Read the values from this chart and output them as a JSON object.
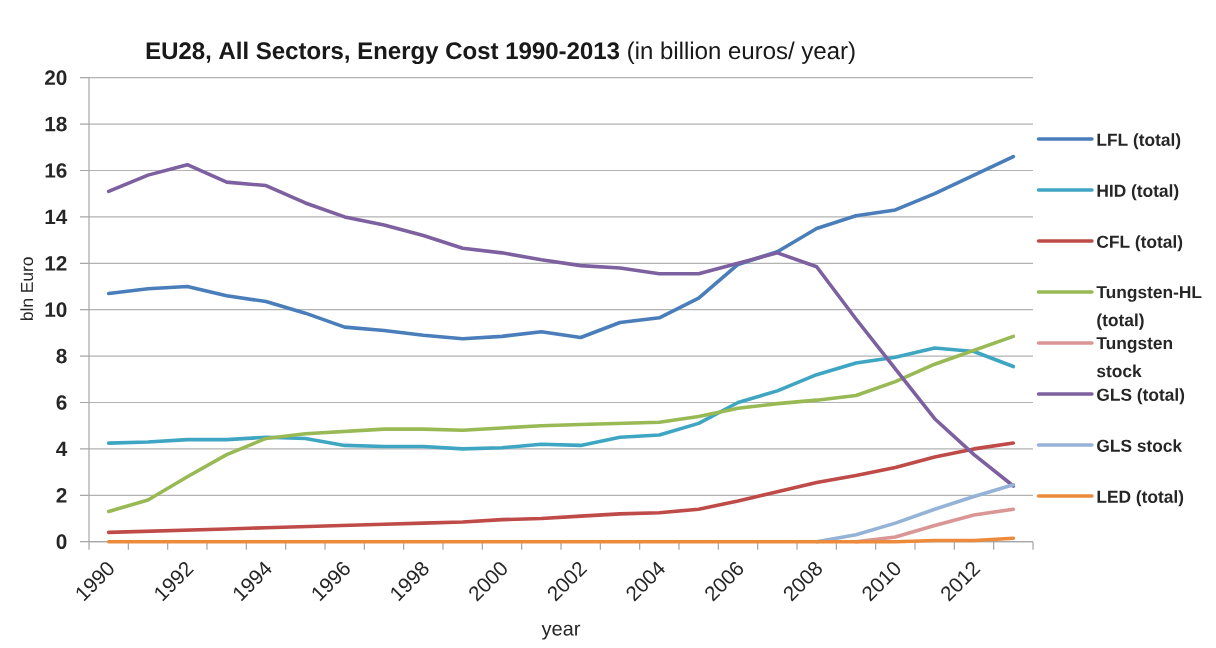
{
  "chart_data": {
    "type": "line",
    "title": "**EU28, All Sectors, Energy Cost 1990-2013** (in billion euros/ year)",
    "xlabel": "year",
    "ylabel": "bln Euro",
    "categories": [
      "1990",
      null,
      "1992",
      null,
      "1994",
      null,
      "1996",
      null,
      "1998",
      null,
      "2000",
      null,
      "2002",
      null,
      "2004",
      null,
      "2006",
      null,
      "2008",
      null,
      "2010",
      null,
      "2012",
      null
    ],
    "series": [
      {
        "name": "LFL (total)",
        "color": "#4a7ebb",
        "values": [
          10.7,
          10.9,
          11.0,
          10.6,
          10.35,
          9.85,
          9.25,
          9.1,
          8.9,
          8.75,
          8.85,
          9.05,
          8.8,
          9.45,
          9.65,
          10.5,
          11.95,
          12.5,
          13.5,
          14.05,
          14.3,
          15.0,
          15.8,
          16.6
        ]
      },
      {
        "name": "HID (total)",
        "color": "#3ea6c2",
        "values": [
          4.25,
          4.3,
          4.4,
          4.4,
          4.5,
          4.45,
          4.15,
          4.1,
          4.1,
          4.0,
          4.05,
          4.2,
          4.15,
          4.5,
          4.6,
          5.1,
          6.0,
          6.5,
          7.2,
          7.7,
          7.95,
          8.35,
          8.2,
          7.55
        ]
      },
      {
        "name": "CFL (total)",
        "color": "#be4b48",
        "values": [
          0.4,
          0.45,
          0.5,
          0.55,
          0.6,
          0.65,
          0.7,
          0.75,
          0.8,
          0.85,
          0.95,
          1.0,
          1.1,
          1.2,
          1.25,
          1.4,
          1.75,
          2.15,
          2.55,
          2.85,
          3.2,
          3.65,
          4.0,
          4.25
        ]
      },
      {
        "name": "Tungsten-HL (total)",
        "color": "#98b954",
        "values": [
          1.3,
          1.8,
          2.8,
          3.75,
          4.45,
          4.65,
          4.75,
          4.85,
          4.85,
          4.8,
          4.9,
          5.0,
          5.05,
          5.1,
          5.15,
          5.4,
          5.75,
          5.95,
          6.1,
          6.3,
          6.9,
          7.65,
          8.25,
          8.85
        ]
      },
      {
        "name": "Tungsten stock",
        "color": "#d99694",
        "values": [
          null,
          null,
          null,
          null,
          null,
          null,
          null,
          null,
          null,
          null,
          null,
          null,
          null,
          null,
          null,
          null,
          null,
          null,
          null,
          0,
          0.2,
          0.7,
          1.15,
          1.4
        ]
      },
      {
        "name": "GLS (total)",
        "color": "#7d60a0",
        "values": [
          15.1,
          15.8,
          16.25,
          15.5,
          15.35,
          14.6,
          14.0,
          13.65,
          13.2,
          12.65,
          12.45,
          12.15,
          11.9,
          11.8,
          11.55,
          11.55,
          12.0,
          12.45,
          11.85,
          9.6,
          7.45,
          5.3,
          3.75,
          2.4
        ]
      },
      {
        "name": "GLS stock",
        "color": "#95b3d7",
        "values": [
          null,
          null,
          null,
          null,
          null,
          null,
          null,
          null,
          null,
          null,
          null,
          null,
          null,
          null,
          null,
          null,
          null,
          null,
          0,
          0.3,
          0.8,
          1.4,
          1.95,
          2.45
        ]
      },
      {
        "name": "LED (total)",
        "color": "#ec8b3c",
        "values": [
          0,
          0,
          0,
          0,
          0,
          0,
          0,
          0,
          0,
          0,
          0,
          0,
          0,
          0,
          0,
          0,
          0,
          0,
          0,
          0,
          0,
          0.05,
          0.05,
          0.15
        ]
      }
    ],
    "ylim": [
      0,
      20
    ],
    "yticks": [
      0,
      2,
      4,
      6,
      8,
      10,
      12,
      14,
      16,
      18,
      20
    ],
    "grid": "y",
    "legend": "right"
  }
}
